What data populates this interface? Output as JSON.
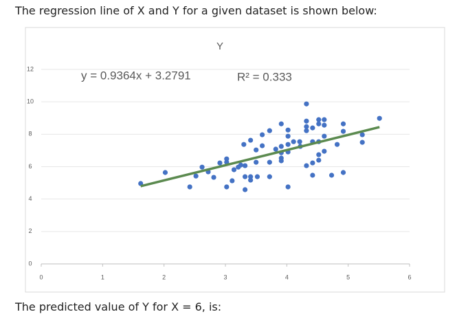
{
  "question": "The regression line of X and Y for a given dataset is shown below:",
  "chart_data": {
    "type": "scatter",
    "title": "Y",
    "xlim": [
      0,
      6
    ],
    "xticks": [
      0,
      1,
      2,
      3,
      4,
      5,
      6
    ],
    "ylim": [
      0,
      12
    ],
    "yticks": [
      0,
      2,
      4,
      6,
      8,
      10,
      12
    ],
    "grid": true,
    "series": [
      {
        "color": "#4472c4",
        "x": [
          1.62,
          2.02,
          2.42,
          2.52,
          2.62,
          2.72,
          2.81,
          2.91,
          3.02,
          3.02,
          3.02,
          3.11,
          3.14,
          3.21,
          3.25,
          3.32,
          3.32,
          3.32,
          3.3,
          3.41,
          3.41,
          3.41,
          3.5,
          3.5,
          3.52,
          3.6,
          3.6,
          3.72,
          3.72,
          3.72,
          3.82,
          3.91,
          3.91,
          3.91,
          3.91,
          3.91,
          4.02,
          4.02,
          4.02,
          4.02,
          4.02,
          4.11,
          4.21,
          4.22,
          4.32,
          4.32,
          4.32,
          4.32,
          4.32,
          4.42,
          4.42,
          4.42,
          4.42,
          4.52,
          4.52,
          4.52,
          4.52,
          4.52,
          4.61,
          4.61,
          4.61,
          4.61,
          4.73,
          4.82,
          4.92,
          4.92,
          4.92,
          5.23,
          5.23,
          5.51
        ],
        "values": [
          4.96,
          5.64,
          4.75,
          5.42,
          5.97,
          5.68,
          5.34,
          6.23,
          6.48,
          6.27,
          4.75,
          5.13,
          5.81,
          5.97,
          6.1,
          6.06,
          4.58,
          5.38,
          7.37,
          7.63,
          5.38,
          5.17,
          7.03,
          6.27,
          5.38,
          7.29,
          7.97,
          8.22,
          6.27,
          5.38,
          7.08,
          8.64,
          7.25,
          6.86,
          6.53,
          6.36,
          8.26,
          7.88,
          7.37,
          6.91,
          4.75,
          7.54,
          7.54,
          7.25,
          9.87,
          8.81,
          8.47,
          8.22,
          6.06,
          8.39,
          7.54,
          6.23,
          5.47,
          8.9,
          8.64,
          7.54,
          6.74,
          6.4,
          8.9,
          8.56,
          7.88,
          6.95,
          5.47,
          7.37,
          8.64,
          8.18,
          5.64,
          7.97,
          7.5,
          8.98
        ]
      }
    ],
    "trendline": {
      "slope": 0.9364,
      "intercept": 3.2791,
      "x": [
        1.62,
        5.51
      ],
      "color": "#5b8a4f",
      "label": "y = 0.9364x + 3.2791",
      "r2_label": "R² = 0.333"
    }
  },
  "footer": "The predicted value of Y for X = 6, is:"
}
